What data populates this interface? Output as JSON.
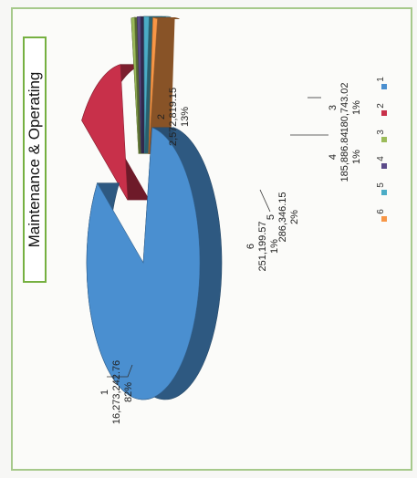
{
  "chart_data": {
    "type": "pie",
    "style": "3d exploded pie, rotated 90 degrees counter-clockwise",
    "title": "Maintenance & Operating",
    "categories": [
      "1",
      "2",
      "3",
      "4",
      "5",
      "6"
    ],
    "values": [
      16273242.76,
      2572819.15,
      180743.02,
      185886.84,
      286346.15,
      251199.57
    ],
    "value_labels": [
      "16,273,242.76",
      "2,572,819.15",
      "180,743.02",
      "185,886.84",
      "286,346.15",
      "251,199.57"
    ],
    "percent_labels": [
      "82%",
      "13%",
      "1%",
      "1%",
      "2%",
      "1%"
    ],
    "colors": [
      "#4a8fd0",
      "#c8304a",
      "#9bbb59",
      "#5b4b8a",
      "#4bacc6",
      "#f79646"
    ],
    "legend": {
      "position": "right",
      "entries": [
        "1",
        "2",
        "3",
        "4",
        "5",
        "6"
      ]
    }
  }
}
